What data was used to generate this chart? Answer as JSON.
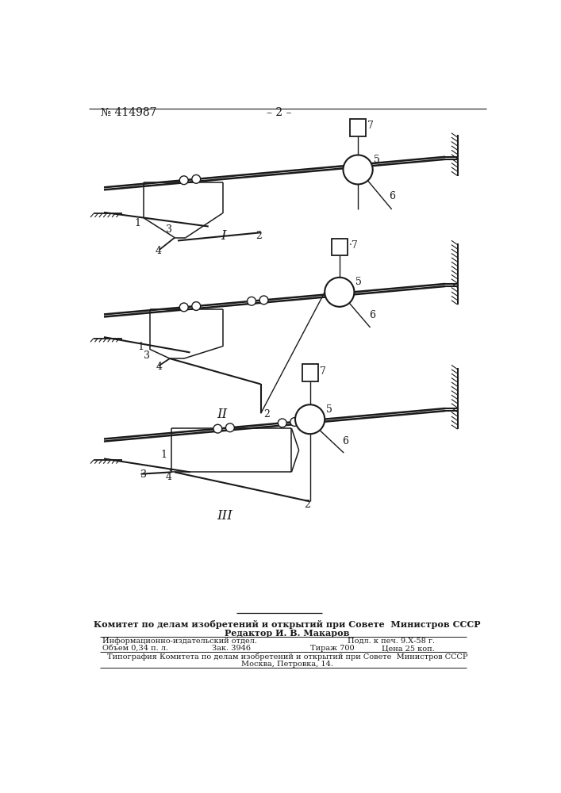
{
  "bg_color": "#ffffff",
  "line_color": "#1a1a1a",
  "header_number": "№ 414987",
  "header_page": "– 2 –",
  "footer_bold1": "Комитет по делам изобретений и открытий при Совете  Министров СССР",
  "footer_bold2": "Редактор И. В. Макаров",
  "footer_small1": "Информационно-издательский отдел.",
  "footer_small2a": "Объем 0,34 п. л.",
  "footer_small2b": "Зак. 3946",
  "footer_small2c": "Тираж 700",
  "footer_small2d": "Цена 25 коп.",
  "footer_small3": "Подл. к печ. 9.Х-58 г.",
  "footer_small4": "Типография Комитета по делам изобретений и открытий при Совете  Министров СССР",
  "footer_small5": "Москва, Петровка, 14."
}
